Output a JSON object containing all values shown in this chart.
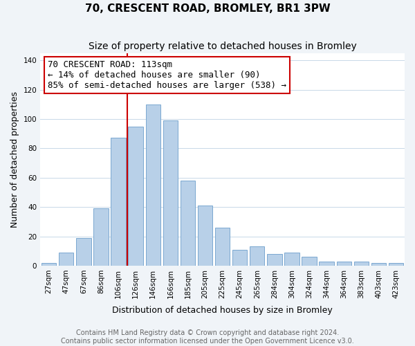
{
  "title": "70, CRESCENT ROAD, BROMLEY, BR1 3PW",
  "subtitle": "Size of property relative to detached houses in Bromley",
  "xlabel": "Distribution of detached houses by size in Bromley",
  "ylabel": "Number of detached properties",
  "categories": [
    "27sqm",
    "47sqm",
    "67sqm",
    "86sqm",
    "106sqm",
    "126sqm",
    "146sqm",
    "166sqm",
    "185sqm",
    "205sqm",
    "225sqm",
    "245sqm",
    "265sqm",
    "284sqm",
    "304sqm",
    "324sqm",
    "344sqm",
    "364sqm",
    "383sqm",
    "403sqm",
    "423sqm"
  ],
  "values": [
    2,
    9,
    19,
    39,
    87,
    95,
    110,
    99,
    58,
    41,
    26,
    11,
    13,
    8,
    9,
    6,
    3,
    3,
    3,
    2,
    2
  ],
  "bar_color": "#b8d0e8",
  "bar_edge_color": "#7aa8d0",
  "property_line_x": 4.5,
  "property_line_color": "#cc0000",
  "annotation_title": "70 CRESCENT ROAD: 113sqm",
  "annotation_line1": "← 14% of detached houses are smaller (90)",
  "annotation_line2": "85% of semi-detached houses are larger (538) →",
  "annotation_box_color": "#ffffff",
  "annotation_box_edge_color": "#cc0000",
  "ylim": [
    0,
    145
  ],
  "yticks": [
    0,
    20,
    40,
    60,
    80,
    100,
    120,
    140
  ],
  "footer_line1": "Contains HM Land Registry data © Crown copyright and database right 2024.",
  "footer_line2": "Contains public sector information licensed under the Open Government Licence v3.0.",
  "bg_color": "#f0f4f8",
  "plot_bg_color": "#ffffff",
  "title_fontsize": 11,
  "subtitle_fontsize": 10,
  "tick_fontsize": 7.5,
  "axis_label_fontsize": 9,
  "footer_fontsize": 7,
  "annotation_fontsize": 9
}
